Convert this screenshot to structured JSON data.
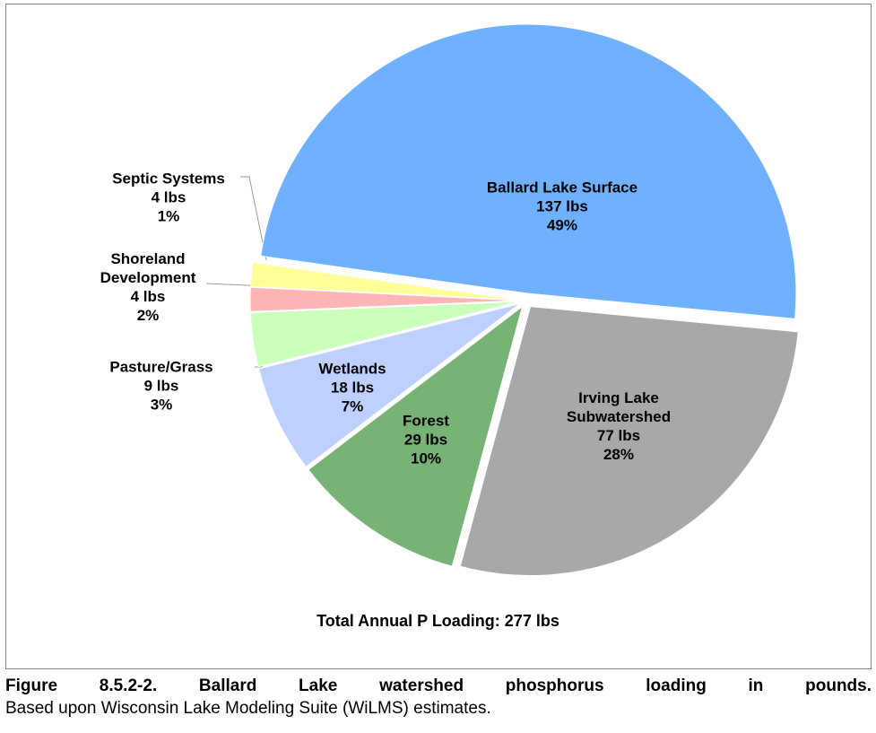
{
  "chart_data": {
    "type": "pie",
    "categories": [
      "Ballard Lake Surface",
      "Irving Lake\nSubwatershed",
      "Forest",
      "Wetlands",
      "Pasture/Grass",
      "Shoreland\nDevelopment",
      "Septic Systems"
    ],
    "values": [
      137,
      77,
      29,
      18,
      9,
      4,
      4
    ],
    "value_labels": [
      "137 lbs",
      "77 lbs",
      "29 lbs",
      "18 lbs",
      "9 lbs",
      "4 lbs",
      "4 lbs"
    ],
    "percent_labels": [
      "49%",
      "28%",
      "10%",
      "7%",
      "3%",
      "2%",
      "1%"
    ],
    "colors": [
      "#6fb1ff",
      "#a8a8a8",
      "#76b374",
      "#bdd0ff",
      "#ccffbb",
      "#ffb5b5",
      "#ffff99"
    ],
    "annotation": "Total Annual P Loading: 277 lbs"
  },
  "caption": {
    "figure": "Figure 8.5.2-2.  Ballard Lake watershed phosphorus loading in pounds.",
    "text": "Based upon Wisconsin Lake Modeling Suite (WiLMS) estimates."
  }
}
